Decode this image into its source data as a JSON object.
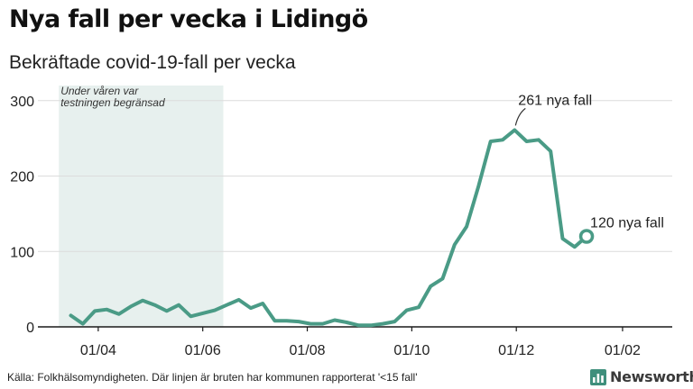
{
  "title": "Nya fall per vecka i Lidingö",
  "subtitle": "Bekräftade covid-19-fall per vecka",
  "source": "Källa: Folkhälsomyndigheten. Där linjen är bruten har kommunen rapporterat '<15 fall'",
  "brand": "Newsworthy",
  "chart_data": {
    "type": "line",
    "title": "Nya fall per vecka i Lidingö",
    "subtitle": "Bekräftade covid-19-fall per vecka",
    "xlabel": "",
    "ylabel": "",
    "ylim": [
      0,
      320
    ],
    "yticks": [
      0,
      100,
      200,
      300
    ],
    "x_ticks": [
      {
        "label": "01/04",
        "date": "2020-04-01"
      },
      {
        "label": "01/06",
        "date": "2020-06-01"
      },
      {
        "label": "01/08",
        "date": "2020-08-01"
      },
      {
        "label": "01/10",
        "date": "2020-10-01"
      },
      {
        "label": "01/12",
        "date": "2020-12-01"
      },
      {
        "label": "01/02",
        "date": "2021-02-01"
      }
    ],
    "grid": true,
    "line_color": "#4a9b86",
    "shaded_region": {
      "start": "2020-03-09",
      "end": "2020-06-13",
      "label_line1": "Under våren var",
      "label_line2": "testningen begränsad",
      "color": "#e7f0ee"
    },
    "series": [
      {
        "dates": [
          "2020-03-16",
          "2020-03-23",
          "2020-03-30",
          "2020-04-06",
          "2020-04-13",
          "2020-04-20",
          "2020-04-27",
          "2020-05-04",
          "2020-05-11",
          "2020-05-18",
          "2020-05-25",
          "2020-06-01",
          "2020-06-08",
          "2020-06-15",
          "2020-06-22",
          "2020-06-29",
          "2020-07-06",
          "2020-07-13",
          "2020-07-20",
          "2020-07-27",
          "2020-08-03",
          "2020-08-10",
          "2020-08-17",
          "2020-08-24",
          "2020-08-31",
          "2020-09-07",
          "2020-09-14",
          "2020-09-21",
          "2020-09-28",
          "2020-10-05",
          "2020-10-12",
          "2020-10-19",
          "2020-10-26",
          "2020-11-02",
          "2020-11-09",
          "2020-11-16",
          "2020-11-23",
          "2020-11-30",
          "2020-12-07",
          "2020-12-14",
          "2020-12-21",
          "2020-12-28",
          "2021-01-04",
          "2021-01-11"
        ],
        "values": [
          15,
          4,
          21,
          23,
          17,
          27,
          35,
          29,
          21,
          29,
          14,
          18,
          22,
          29,
          36,
          25,
          31,
          8,
          8,
          7,
          4,
          4,
          9,
          6,
          2,
          2,
          4,
          7,
          22,
          26,
          54,
          64,
          109,
          133,
          187,
          246,
          248,
          261,
          246,
          248,
          233,
          117,
          106,
          120
        ]
      }
    ],
    "annotations": [
      {
        "text": "261 nya fall",
        "date": "2020-11-30",
        "value": 261
      },
      {
        "text": "120 nya fall",
        "date": "2021-01-11",
        "value": 120
      }
    ]
  }
}
